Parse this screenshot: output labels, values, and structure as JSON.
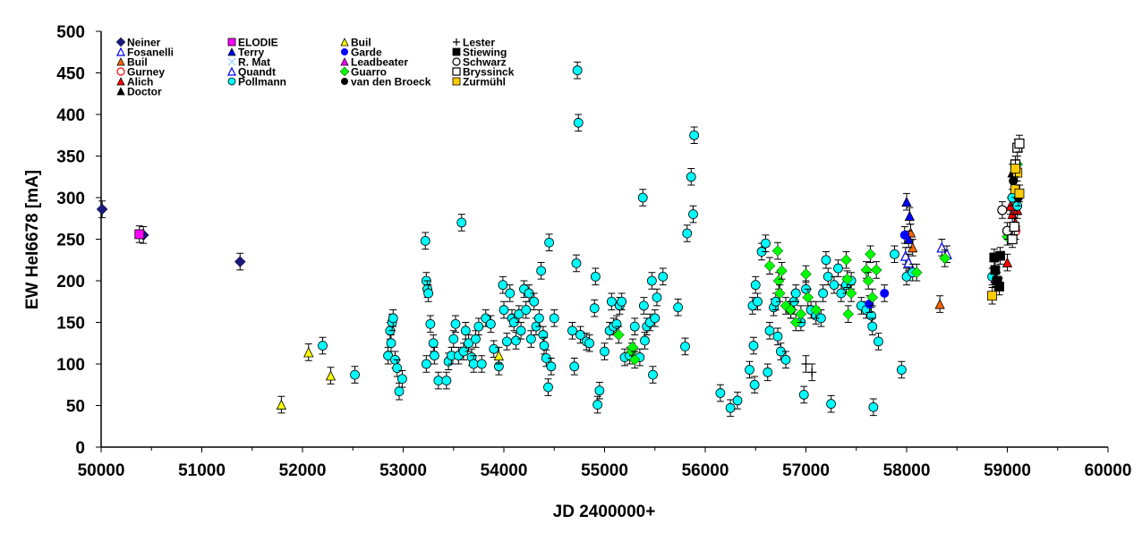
{
  "chart_data": {
    "type": "scatter",
    "xlabel": "JD 2400000+",
    "ylabel": "EW HeI6678 [mA]",
    "xlim": [
      50000,
      60000
    ],
    "ylim": [
      0,
      500
    ],
    "xticks": [
      50000,
      51000,
      52000,
      53000,
      54000,
      55000,
      56000,
      57000,
      58000,
      59000,
      60000
    ],
    "yticks": [
      0,
      50,
      100,
      150,
      200,
      250,
      300,
      350,
      400,
      450,
      500
    ],
    "grid": false,
    "legend_position": "top-left",
    "typical_error_mA": 10,
    "series": [
      {
        "name": "Neiner",
        "marker": "diamond",
        "color": "#1a1a80",
        "points": [
          [
            50010,
            286
          ],
          [
            50420,
            255
          ],
          [
            51380,
            223
          ]
        ]
      },
      {
        "name": "Fosanelli",
        "marker": "triangle-open",
        "color": "#0000ff",
        "points": [
          [
            58350,
            240
          ],
          [
            58400,
            232
          ]
        ]
      },
      {
        "name": "Buil",
        "marker": "triangle",
        "color": "#ff6600",
        "points": [
          [
            58040,
            258
          ],
          [
            58060,
            240
          ],
          [
            58330,
            172
          ]
        ]
      },
      {
        "name": "Gurney",
        "marker": "circle-open",
        "color": "#ff0000",
        "points": [
          [
            59080,
            260
          ]
        ]
      },
      {
        "name": "Alich",
        "marker": "triangle",
        "color": "#ff0000",
        "points": [
          [
            59000,
            222
          ],
          [
            59050,
            280
          ],
          [
            59080,
            270
          ],
          [
            59100,
            285
          ],
          [
            59030,
            290
          ]
        ]
      },
      {
        "name": "Doctor",
        "marker": "triangle",
        "color": "#000000",
        "points": [
          [
            59080,
            300
          ],
          [
            59050,
            330
          ]
        ]
      },
      {
        "name": "ELODIE",
        "marker": "square",
        "color": "#ff00ff",
        "points": [
          [
            50380,
            256
          ]
        ]
      },
      {
        "name": "Terry",
        "marker": "triangle",
        "color": "#0000ff",
        "points": [
          [
            58000,
            295
          ],
          [
            58030,
            278
          ],
          [
            58020,
            250
          ]
        ]
      },
      {
        "name": "R. Mat",
        "marker": "x",
        "color": "#99ccff",
        "points": []
      },
      {
        "name": "Quandt",
        "marker": "triangle-open",
        "color": "#0000ff",
        "points": [
          [
            57990,
            230
          ],
          [
            58020,
            222
          ]
        ]
      },
      {
        "name": "Pollmann",
        "marker": "circle",
        "color": "#00ffff",
        "points": [
          [
            52200,
            122
          ],
          [
            52520,
            87
          ],
          [
            52850,
            110
          ],
          [
            52870,
            140
          ],
          [
            52880,
            125
          ],
          [
            52890,
            150
          ],
          [
            52900,
            155
          ],
          [
            52920,
            105
          ],
          [
            52940,
            95
          ],
          [
            52960,
            67
          ],
          [
            52990,
            82
          ],
          [
            53220,
            248
          ],
          [
            53230,
            200
          ],
          [
            53240,
            190
          ],
          [
            53250,
            185
          ],
          [
            53230,
            100
          ],
          [
            53270,
            148
          ],
          [
            53300,
            125
          ],
          [
            53310,
            110
          ],
          [
            53350,
            80
          ],
          [
            53430,
            80
          ],
          [
            53450,
            103
          ],
          [
            53480,
            110
          ],
          [
            53500,
            130
          ],
          [
            53520,
            148
          ],
          [
            53550,
            110
          ],
          [
            53580,
            270
          ],
          [
            53600,
            115
          ],
          [
            53620,
            140
          ],
          [
            53650,
            125
          ],
          [
            53680,
            108
          ],
          [
            53700,
            100
          ],
          [
            53720,
            130
          ],
          [
            53750,
            145
          ],
          [
            53780,
            100
          ],
          [
            53820,
            155
          ],
          [
            53870,
            148
          ],
          [
            53900,
            118
          ],
          [
            53950,
            97
          ],
          [
            53990,
            195
          ],
          [
            54000,
            165
          ],
          [
            54030,
            127
          ],
          [
            54060,
            185
          ],
          [
            54080,
            155
          ],
          [
            54100,
            150
          ],
          [
            54120,
            128
          ],
          [
            54150,
            160
          ],
          [
            54170,
            140
          ],
          [
            54200,
            190
          ],
          [
            54220,
            165
          ],
          [
            54250,
            185
          ],
          [
            54270,
            130
          ],
          [
            54300,
            175
          ],
          [
            54320,
            145
          ],
          [
            54350,
            155
          ],
          [
            54370,
            212
          ],
          [
            54390,
            135
          ],
          [
            54400,
            122
          ],
          [
            54420,
            107
          ],
          [
            54440,
            72
          ],
          [
            54450,
            246
          ],
          [
            54470,
            97
          ],
          [
            54500,
            155
          ],
          [
            54680,
            140
          ],
          [
            54700,
            97
          ],
          [
            54720,
            221
          ],
          [
            54730,
            453
          ],
          [
            54740,
            390
          ],
          [
            54760,
            135
          ],
          [
            54820,
            127
          ],
          [
            54850,
            125
          ],
          [
            54900,
            167
          ],
          [
            54910,
            205
          ],
          [
            54930,
            51
          ],
          [
            54950,
            68
          ],
          [
            55000,
            115
          ],
          [
            55050,
            140
          ],
          [
            55070,
            175
          ],
          [
            55090,
            145
          ],
          [
            55120,
            148
          ],
          [
            55150,
            170
          ],
          [
            55170,
            175
          ],
          [
            55200,
            108
          ],
          [
            55250,
            110
          ],
          [
            55300,
            145
          ],
          [
            55350,
            108
          ],
          [
            55380,
            300
          ],
          [
            55390,
            170
          ],
          [
            55400,
            128
          ],
          [
            55420,
            145
          ],
          [
            55450,
            150
          ],
          [
            55470,
            200
          ],
          [
            55480,
            87
          ],
          [
            55500,
            155
          ],
          [
            55520,
            180
          ],
          [
            55580,
            205
          ],
          [
            55730,
            168
          ],
          [
            55800,
            121
          ],
          [
            55820,
            257
          ],
          [
            55860,
            325
          ],
          [
            55880,
            280
          ],
          [
            55890,
            375
          ],
          [
            56150,
            65
          ],
          [
            56250,
            47
          ],
          [
            56320,
            56
          ],
          [
            56440,
            93
          ],
          [
            56470,
            170
          ],
          [
            56480,
            122
          ],
          [
            56490,
            75
          ],
          [
            56500,
            195
          ],
          [
            56520,
            175
          ],
          [
            56560,
            235
          ],
          [
            56600,
            245
          ],
          [
            56620,
            90
          ],
          [
            56640,
            140
          ],
          [
            56680,
            168
          ],
          [
            56700,
            175
          ],
          [
            56720,
            133
          ],
          [
            56750,
            115
          ],
          [
            56800,
            105
          ],
          [
            56850,
            165
          ],
          [
            56880,
            175
          ],
          [
            56900,
            185
          ],
          [
            56950,
            150
          ],
          [
            56980,
            63
          ],
          [
            57000,
            190
          ],
          [
            57050,
            165
          ],
          [
            57100,
            158
          ],
          [
            57150,
            155
          ],
          [
            57170,
            185
          ],
          [
            57200,
            225
          ],
          [
            57220,
            205
          ],
          [
            57250,
            52
          ],
          [
            57280,
            195
          ],
          [
            57320,
            215
          ],
          [
            57350,
            185
          ],
          [
            57400,
            195
          ],
          [
            57450,
            200
          ],
          [
            57550,
            170
          ],
          [
            57600,
            165
          ],
          [
            57650,
            158
          ],
          [
            57660,
            145
          ],
          [
            57670,
            48
          ],
          [
            57720,
            127
          ],
          [
            57880,
            232
          ],
          [
            57950,
            93
          ],
          [
            58000,
            205
          ],
          [
            58060,
            210
          ],
          [
            58850,
            205
          ],
          [
            59050,
            300
          ],
          [
            59100,
            290
          ]
        ]
      },
      {
        "name": "Buil",
        "marker": "triangle",
        "color": "#ffff00",
        "points": [
          [
            51790,
            51
          ],
          [
            52060,
            114
          ],
          [
            52280,
            86
          ],
          [
            53950,
            110
          ]
        ]
      },
      {
        "name": "Garde",
        "marker": "octagon",
        "color": "#0000ff",
        "points": [
          [
            57980,
            255
          ],
          [
            57780,
            185
          ],
          [
            57630,
            172
          ]
        ]
      },
      {
        "name": "Leadbeater",
        "marker": "triangle",
        "color": "#ff00ff",
        "points": [
          [
            58880,
            203
          ]
        ]
      },
      {
        "name": "Guarro",
        "marker": "diamond",
        "color": "#00ff00",
        "points": [
          [
            55140,
            135
          ],
          [
            55270,
            115
          ],
          [
            55280,
            120
          ],
          [
            55300,
            105
          ],
          [
            56640,
            218
          ],
          [
            56720,
            236
          ],
          [
            56730,
            200
          ],
          [
            56740,
            185
          ],
          [
            56760,
            212
          ],
          [
            56800,
            170
          ],
          [
            56850,
            165
          ],
          [
            56900,
            150
          ],
          [
            56950,
            160
          ],
          [
            57000,
            208
          ],
          [
            57020,
            180
          ],
          [
            57100,
            165
          ],
          [
            57400,
            225
          ],
          [
            57410,
            202
          ],
          [
            57420,
            160
          ],
          [
            57450,
            185
          ],
          [
            57600,
            213
          ],
          [
            57620,
            200
          ],
          [
            57640,
            232
          ],
          [
            57660,
            180
          ],
          [
            57700,
            213
          ],
          [
            58100,
            210
          ],
          [
            58380,
            227
          ],
          [
            59000,
            253
          ],
          [
            59100,
            340
          ]
        ]
      },
      {
        "name": "van den Broeck",
        "marker": "octagon",
        "color": "#000000",
        "points": [
          [
            59060,
            320
          ],
          [
            59110,
            300
          ]
        ]
      },
      {
        "name": "Lester",
        "marker": "plus",
        "color": "#000000",
        "points": [
          [
            57000,
            100
          ],
          [
            57060,
            90
          ]
        ]
      },
      {
        "name": "Stiewing",
        "marker": "square",
        "color": "#000000",
        "points": [
          [
            58870,
            228
          ],
          [
            58880,
            213
          ],
          [
            58900,
            200
          ],
          [
            58920,
            193
          ],
          [
            58930,
            230
          ]
        ]
      },
      {
        "name": "Schwarz",
        "marker": "circle-open",
        "color": "#000000",
        "points": [
          [
            58950,
            285
          ],
          [
            59000,
            260
          ]
        ]
      },
      {
        "name": "Bryssinck",
        "marker": "square-open",
        "color": "#000000",
        "points": [
          [
            59050,
            250
          ],
          [
            59070,
            265
          ],
          [
            59100,
            360
          ],
          [
            59120,
            365
          ],
          [
            59080,
            340
          ]
        ]
      },
      {
        "name": "Zurmühl",
        "marker": "square",
        "color": "#ffcc00",
        "points": [
          [
            58850,
            182
          ],
          [
            59080,
            310
          ],
          [
            59100,
            330
          ],
          [
            59120,
            305
          ],
          [
            59080,
            335
          ]
        ]
      }
    ]
  }
}
